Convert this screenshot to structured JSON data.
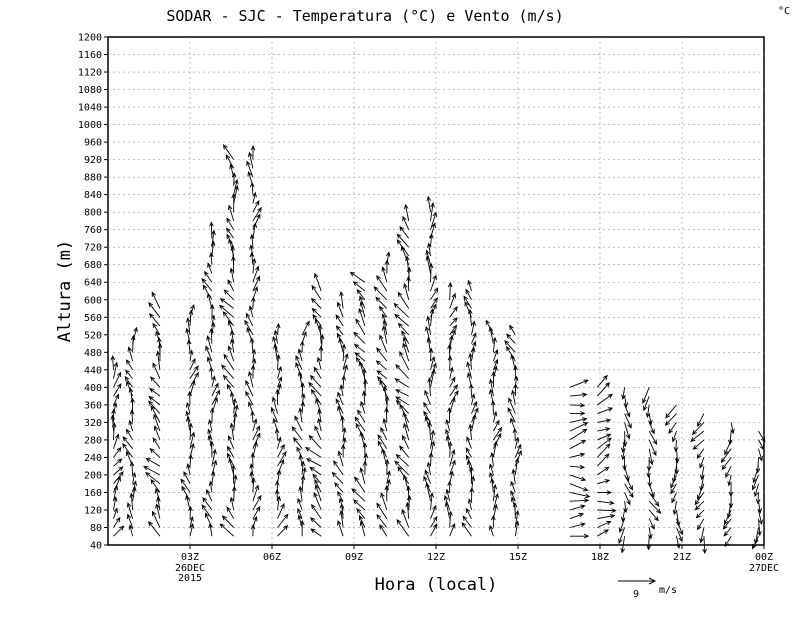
{
  "chart_data": {
    "type": "wind_barb_profile",
    "title": "SODAR - SJC - Temperatura (°C) e Vento (m/s)",
    "corner_unit": "°C",
    "ylabel": "Altura (m)",
    "xlabel": "Hora (local)",
    "ylim": [
      40,
      1200
    ],
    "yticks": [
      40,
      80,
      120,
      160,
      200,
      240,
      280,
      320,
      360,
      400,
      440,
      480,
      520,
      560,
      600,
      640,
      680,
      720,
      760,
      800,
      840,
      880,
      920,
      960,
      1000,
      1040,
      1080,
      1120,
      1160,
      1200
    ],
    "xlim_hours": [
      0,
      24
    ],
    "xtick_hours": [
      3,
      6,
      9,
      12,
      15,
      18,
      21,
      24
    ],
    "xtick_labels": [
      "03Z",
      "06Z",
      "09Z",
      "12Z",
      "15Z",
      "18Z",
      "21Z",
      "00Z"
    ],
    "date_labels": [
      {
        "hour": 3,
        "lines": [
          "26DEC",
          "2015"
        ]
      },
      {
        "hour": 24,
        "lines": [
          "27DEC"
        ]
      }
    ],
    "grid": true,
    "reference_vector": {
      "value": "9",
      "unit": "m/s"
    },
    "profiles": [
      {
        "hour": 0.2,
        "top": 440,
        "dir": 200,
        "spd": 3
      },
      {
        "hour": 0.9,
        "top": 500,
        "dir": 170,
        "spd": 3
      },
      {
        "hour": 1.9,
        "top": 580,
        "dir": 150,
        "spd": 4
      },
      {
        "hour": 3.0,
        "top": 560,
        "dir": 180,
        "spd": 3
      },
      {
        "hour": 3.8,
        "top": 740,
        "dir": 175,
        "spd": 3
      },
      {
        "hour": 4.6,
        "top": 930,
        "dir": 160,
        "spd": 4
      },
      {
        "hour": 5.3,
        "top": 920,
        "dir": 180,
        "spd": 3
      },
      {
        "hour": 6.2,
        "top": 520,
        "dir": 190,
        "spd": 3
      },
      {
        "hour": 7.1,
        "top": 520,
        "dir": 175,
        "spd": 3
      },
      {
        "hour": 7.8,
        "top": 620,
        "dir": 150,
        "spd": 4
      },
      {
        "hour": 8.6,
        "top": 580,
        "dir": 165,
        "spd": 3
      },
      {
        "hour": 9.4,
        "top": 640,
        "dir": 155,
        "spd": 4
      },
      {
        "hour": 10.2,
        "top": 690,
        "dir": 160,
        "spd": 4
      },
      {
        "hour": 11.0,
        "top": 780,
        "dir": 150,
        "spd": 5
      },
      {
        "hour": 11.8,
        "top": 800,
        "dir": 180,
        "spd": 4
      },
      {
        "hour": 12.5,
        "top": 600,
        "dir": 190,
        "spd": 3
      },
      {
        "hour": 13.3,
        "top": 620,
        "dir": 175,
        "spd": 3
      },
      {
        "hour": 14.1,
        "top": 520,
        "dir": 180,
        "spd": 3
      },
      {
        "hour": 14.9,
        "top": 520,
        "dir": 170,
        "spd": 3
      },
      {
        "hour": 16.9,
        "top": 400,
        "dir": 260,
        "spd": 5
      },
      {
        "hour": 17.9,
        "top": 400,
        "dir": 250,
        "spd": 4
      },
      {
        "hour": 18.9,
        "top": 410,
        "dir": 0,
        "spd": 3
      },
      {
        "hour": 19.8,
        "top": 410,
        "dir": 350,
        "spd": 3
      },
      {
        "hour": 20.8,
        "top": 370,
        "dir": 10,
        "spd": 3
      },
      {
        "hour": 21.8,
        "top": 350,
        "dir": 20,
        "spd": 3
      },
      {
        "hour": 22.8,
        "top": 330,
        "dir": 10,
        "spd": 3
      },
      {
        "hour": 23.8,
        "top": 300,
        "dir": 0,
        "spd": 3
      }
    ]
  }
}
